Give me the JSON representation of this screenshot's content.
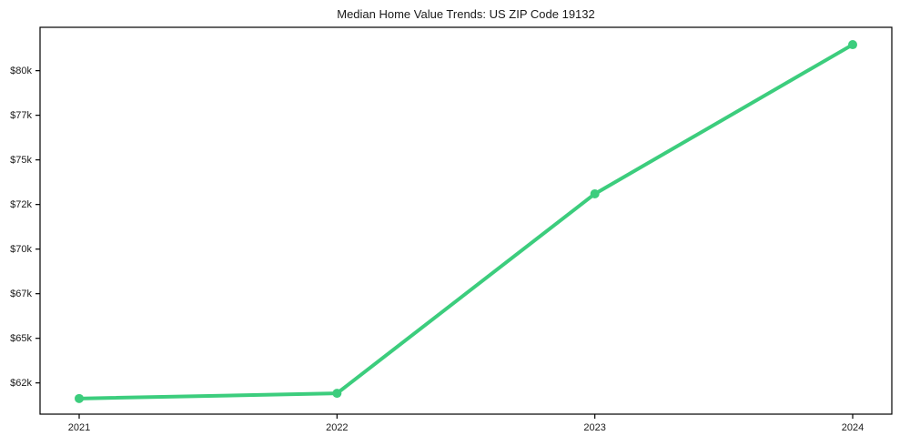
{
  "chart": {
    "title": "Median Home Value Trends: US ZIP Code 19132"
  },
  "chart_data": {
    "type": "line",
    "title": "Median Home Value Trends: US ZIP Code 19132",
    "x": [
      "2021",
      "2022",
      "2023",
      "2024"
    ],
    "values": [
      61100,
      61400,
      72900,
      81500
    ],
    "y_tick_labels": [
      "$62k",
      "$65k",
      "$67k",
      "$70k",
      "$72k",
      "$75k",
      "$77k",
      "$80k"
    ],
    "y_tick_values": [
      62000,
      64571,
      67143,
      69714,
      72286,
      74857,
      77429,
      80000
    ],
    "ylim": [
      60200,
      82500
    ],
    "xlabel": "",
    "ylabel": "",
    "grid": false,
    "legend": false,
    "marker": "circle"
  },
  "colors": {
    "line": "#3ccd7d",
    "axis": "#000000",
    "text": "#1a1a1a",
    "background": "#ffffff"
  }
}
